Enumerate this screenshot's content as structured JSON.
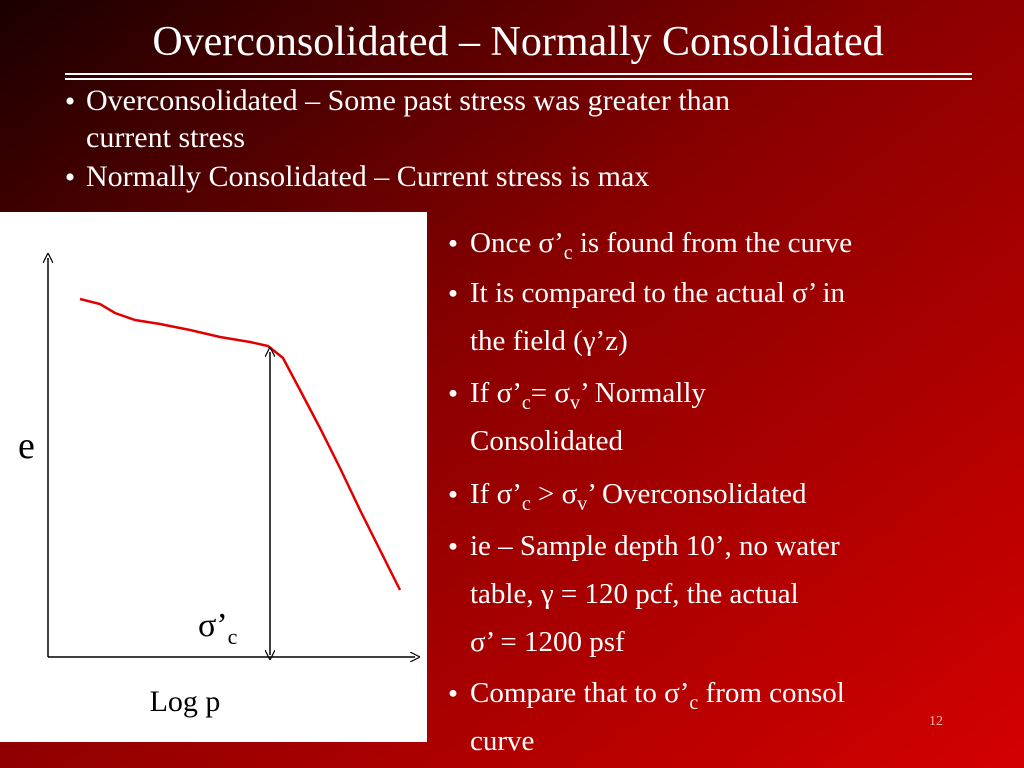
{
  "header": {
    "title": "Overconsolidated – Normally Consolidated"
  },
  "top_bullets": [
    {
      "lines": [
        [
          "Overconsolidated – Some past stress was greater than"
        ],
        [
          "current stress"
        ]
      ]
    },
    {
      "lines": [
        [
          "Normally Consolidated – Current stress is max"
        ]
      ]
    }
  ],
  "diagram": {
    "y_axis_label": "e",
    "marker_label": [
      "σ’",
      "c"
    ],
    "x_axis_label": "Log p"
  },
  "right_bullets": [
    {
      "lines": [
        [
          "Once σ’",
          "c",
          " is found from the curve"
        ]
      ]
    },
    {
      "lines": [
        [
          "It is compared to the actual σ’  in"
        ],
        [
          "the field (γ’z)"
        ]
      ]
    },
    {
      "lines": [
        [
          "If σ’",
          "c",
          "= σ",
          "v",
          "’ Normally"
        ],
        [
          "Consolidated"
        ]
      ]
    },
    {
      "lines": [
        [
          "If σ’",
          "c",
          " > σ",
          "v",
          "’ Overconsolidated"
        ]
      ]
    },
    {
      "lines": [
        [
          " ie – Sample depth 10’, no water"
        ],
        [
          "table, γ = 120 pcf, the actual"
        ],
        [
          "σ’ = 1200 psf"
        ]
      ]
    },
    {
      "lines": [
        [
          "Compare that to σ’",
          "c",
          " from consol"
        ],
        [
          "curve"
        ]
      ]
    }
  ],
  "page_number": "12"
}
